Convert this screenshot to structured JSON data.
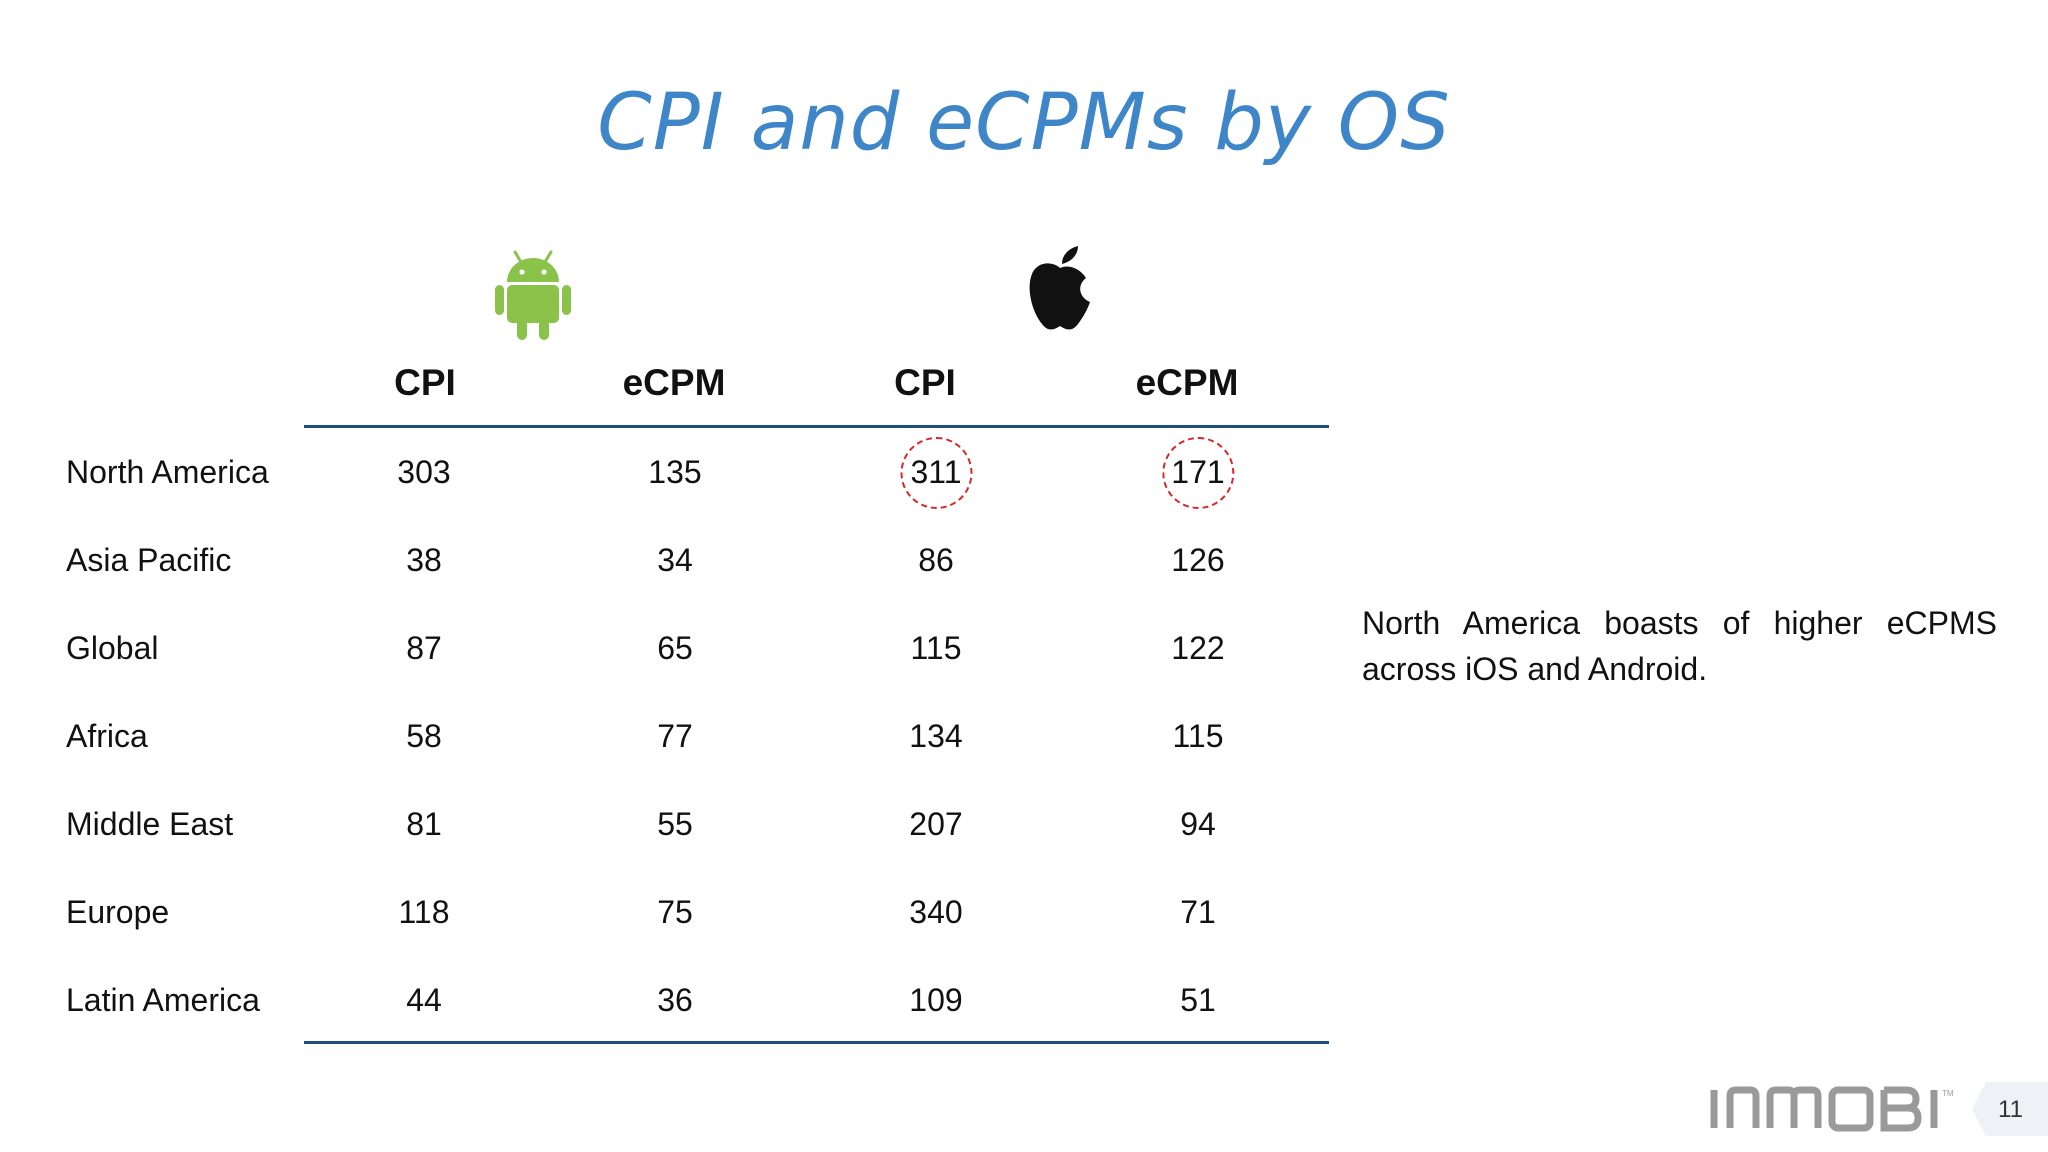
{
  "slide": {
    "title": "CPI and eCPMs by OS",
    "android_icon": "android-robot-icon",
    "apple_icon": "apple-logo-icon",
    "accent_color": "#3f86c9",
    "rule_color": "#1f4e79",
    "highlight_color": "#d42a2a"
  },
  "table": {
    "columns": [
      "CPI",
      "eCPM",
      "CPI",
      "eCPM"
    ],
    "rows": [
      {
        "label": "North America",
        "values": [
          "303",
          "135",
          "311",
          "171"
        ]
      },
      {
        "label": "Asia Pacific",
        "values": [
          "38",
          "34",
          "86",
          "126"
        ]
      },
      {
        "label": "Global",
        "values": [
          "87",
          "65",
          "115",
          "122"
        ]
      },
      {
        "label": "Africa",
        "values": [
          "58",
          "77",
          "134",
          "115"
        ]
      },
      {
        "label": "Middle East",
        "values": [
          "81",
          "55",
          "207",
          "94"
        ]
      },
      {
        "label": "Europe",
        "values": [
          "118",
          "75",
          "340",
          "71"
        ]
      },
      {
        "label": "Latin America",
        "values": [
          "44",
          "36",
          "109",
          "51"
        ]
      }
    ]
  },
  "note": "North America boasts of higher eCPMS across iOS and Android.",
  "footer": {
    "brand": "INMOBI",
    "page_number": "11"
  }
}
